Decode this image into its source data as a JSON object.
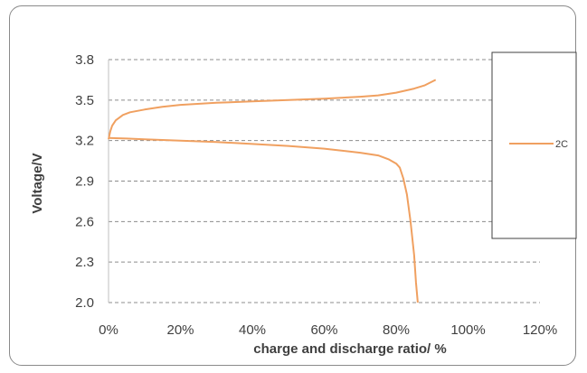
{
  "chart_data": {
    "type": "line",
    "title": "",
    "xlabel": "charge and discharge ratio/ %",
    "ylabel": "Voltage/V",
    "xlim": [
      0,
      120
    ],
    "ylim": [
      2.0,
      3.8
    ],
    "x_ticks": [
      0,
      20,
      40,
      60,
      80,
      100,
      120
    ],
    "x_tick_labels": [
      "0%",
      "20%",
      "40%",
      "60%",
      "80%",
      "100%",
      "120%"
    ],
    "y_ticks": [
      2.0,
      2.3,
      2.6,
      2.9,
      3.2,
      3.5,
      3.8
    ],
    "y_tick_labels": [
      "2.0",
      "2.3",
      "2.6",
      "2.9",
      "3.2",
      "3.5",
      "3.8"
    ],
    "grid": "horizontal dashed",
    "legend_position": "right",
    "legend": [
      "2C"
    ],
    "series_color": "#f0a060",
    "series": [
      {
        "name": "2C",
        "segment": "charge",
        "x": [
          0,
          0.5,
          1,
          2,
          3,
          4,
          6,
          10,
          15,
          20,
          30,
          40,
          50,
          60,
          70,
          75,
          80,
          85,
          88,
          91
        ],
        "y": [
          3.21,
          3.27,
          3.31,
          3.35,
          3.37,
          3.39,
          3.41,
          3.43,
          3.45,
          3.465,
          3.48,
          3.49,
          3.5,
          3.51,
          3.525,
          3.535,
          3.555,
          3.585,
          3.61,
          3.65
        ]
      },
      {
        "name": "2C",
        "segment": "discharge",
        "x": [
          0,
          5,
          10,
          20,
          30,
          40,
          50,
          60,
          70,
          75,
          78,
          80,
          81,
          82,
          83,
          84,
          85,
          85.5,
          86
        ],
        "y": [
          3.22,
          3.215,
          3.21,
          3.2,
          3.19,
          3.175,
          3.16,
          3.14,
          3.11,
          3.09,
          3.06,
          3.03,
          3.0,
          2.92,
          2.8,
          2.6,
          2.35,
          2.15,
          2.0
        ]
      }
    ]
  }
}
